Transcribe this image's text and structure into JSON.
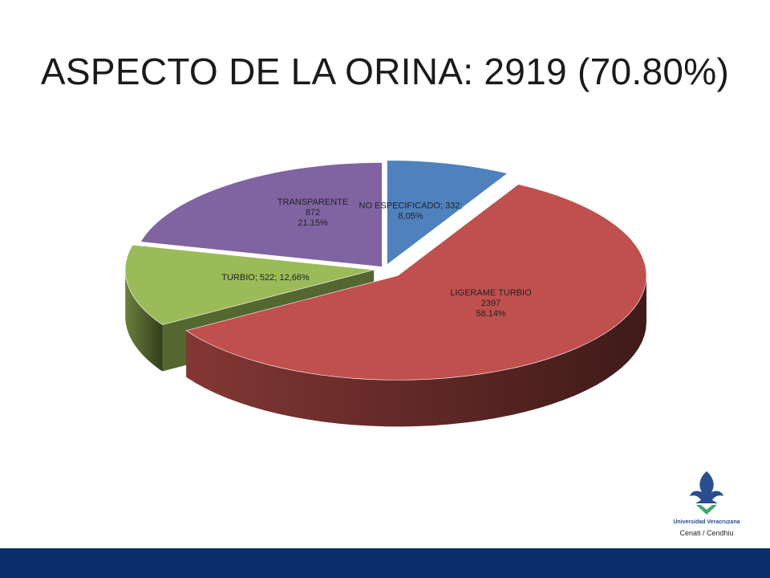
{
  "slide": {
    "title": "ASPECTO DE LA ORINA: 2919 (70.80%)"
  },
  "logo": {
    "name": "Universidad Veracruzana",
    "subtitle": "Cenati / Cendhiu"
  },
  "colors": {
    "no_especificado": "#4f81bd",
    "ligerame_turbio": "#c0504d",
    "turbio": "#9bbb59",
    "transparente": "#8064a2",
    "bottom_bar": "#0b2d6b"
  },
  "chart_data": {
    "type": "pie",
    "title": "",
    "legend": "none",
    "slices": [
      {
        "category": "NO ESPECIFICADO",
        "value": 332,
        "label_lines": [
          "NO ESPECIFICADO; 332;",
          "8,05%"
        ],
        "color": "#4f81bd"
      },
      {
        "category": "LIGERAME TURBIO",
        "value": 2397,
        "label_lines": [
          "LIGERAME TURBIO",
          "2397",
          "58.14%"
        ],
        "color": "#c0504d"
      },
      {
        "category": "TURBIO",
        "value": 522,
        "label_lines": [
          "TURBIO; 522; 12,66%"
        ],
        "color": "#9bbb59"
      },
      {
        "category": "TRANSPARENTE",
        "value": 872,
        "label_lines": [
          "TRANSPARENTE",
          "872",
          "21.15%"
        ],
        "color": "#8064a2"
      }
    ]
  }
}
